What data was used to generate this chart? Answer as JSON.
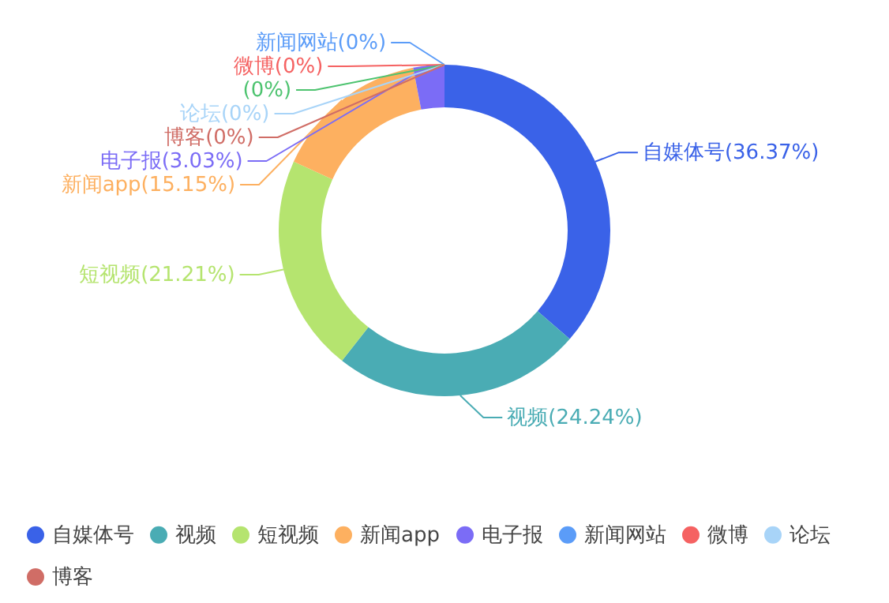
{
  "chart_data": {
    "type": "donut",
    "categories": [
      "自媒体号",
      "视频",
      "短视频",
      "新闻app",
      "电子报",
      "新闻网站",
      "微博",
      null,
      "论坛",
      "博客"
    ],
    "values": [
      36.37,
      24.24,
      21.21,
      15.15,
      3.03,
      0,
      0,
      0,
      0,
      0
    ],
    "value_labels": [
      "(36.37%)",
      "(24.24%)",
      "(21.21%)",
      "(15.15%)",
      "(3.03%)",
      "(0%)",
      "(0%)",
      "(0%)",
      "(0%)",
      "(0%)"
    ],
    "colors": [
      "#3a62e8",
      "#4aacb4",
      "#b5e46f",
      "#fdb060",
      "#7b6cf6",
      "#5b9cf8",
      "#f56262",
      "#4dc36f",
      "#a8d4f8",
      "#d06d66"
    ],
    "legend": "bottom"
  }
}
